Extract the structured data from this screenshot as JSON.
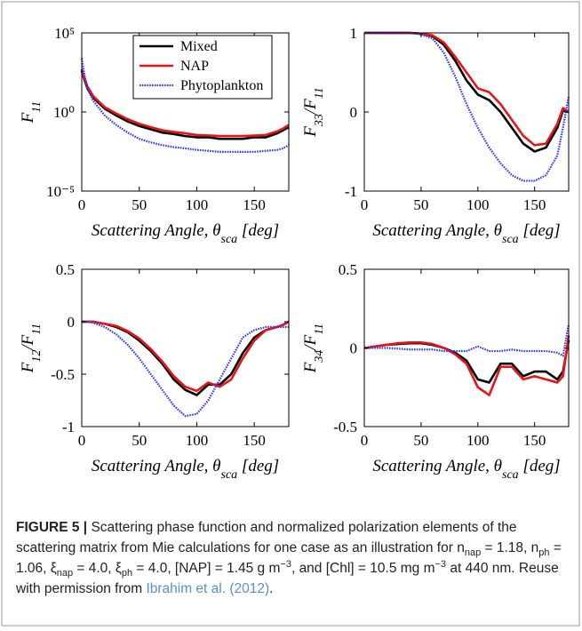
{
  "chart_data": [
    {
      "type": "line",
      "log_y": true,
      "y_label": [
        "F",
        "11"
      ],
      "x_label": [
        "Scattering Angle, θ",
        "sca",
        " [deg]"
      ],
      "x": [
        0,
        2,
        5,
        10,
        20,
        30,
        40,
        50,
        60,
        70,
        80,
        90,
        100,
        110,
        120,
        130,
        140,
        150,
        160,
        170,
        175,
        180
      ],
      "xlim": [
        0,
        180
      ],
      "xticks": [
        0,
        50,
        100,
        150
      ],
      "ylim": [
        1e-05,
        100000
      ],
      "yticks": [
        {
          "value": 1e-05,
          "label": "10⁻⁵"
        },
        {
          "value": 1,
          "label": "10⁰"
        },
        {
          "value": 100000,
          "label": "10⁵"
        }
      ],
      "legend": "upper right",
      "series": [
        {
          "name": "Mixed",
          "color": "#000000",
          "style": "solid",
          "values": [
            400,
            130,
            30,
            8,
            1.6,
            0.6,
            0.25,
            0.13,
            0.08,
            0.05,
            0.04,
            0.03,
            0.025,
            0.025,
            0.02,
            0.02,
            0.02,
            0.025,
            0.025,
            0.045,
            0.07,
            0.11
          ]
        },
        {
          "name": "NAP",
          "color": "#e8141b",
          "style": "solid",
          "values": [
            500,
            160,
            40,
            10,
            2,
            0.8,
            0.35,
            0.18,
            0.11,
            0.07,
            0.055,
            0.045,
            0.035,
            0.033,
            0.03,
            0.03,
            0.03,
            0.032,
            0.035,
            0.06,
            0.09,
            0.15
          ]
        },
        {
          "name": "Phytoplankton",
          "color": "#2b3cff",
          "style": "dotted",
          "values": [
            2500,
            300,
            30,
            5,
            0.6,
            0.15,
            0.05,
            0.02,
            0.012,
            0.008,
            0.006,
            0.005,
            0.004,
            0.0035,
            0.003,
            0.003,
            0.003,
            0.003,
            0.0035,
            0.004,
            0.005,
            0.008
          ]
        }
      ]
    },
    {
      "type": "line",
      "y_label": [
        "F",
        "33",
        "/F",
        "11"
      ],
      "x_label": [
        "Scattering Angle, θ",
        "sca",
        " [deg]"
      ],
      "x": [
        0,
        2,
        5,
        10,
        20,
        30,
        40,
        50,
        60,
        70,
        80,
        90,
        100,
        110,
        120,
        130,
        140,
        150,
        160,
        170,
        175,
        180
      ],
      "xlim": [
        0,
        180
      ],
      "xticks": [
        0,
        50,
        100,
        150
      ],
      "ylim": [
        -1,
        1
      ],
      "yticks": [
        -1,
        0,
        1
      ],
      "series": [
        {
          "color": "#000000",
          "style": "solid",
          "values": [
            1,
            1,
            1,
            1,
            1,
            1,
            1,
            0.99,
            0.96,
            0.85,
            0.65,
            0.4,
            0.22,
            0.15,
            0,
            -0.2,
            -0.4,
            -0.5,
            -0.45,
            -0.2,
            0.02,
            0
          ]
        },
        {
          "color": "#e8141b",
          "style": "solid",
          "values": [
            1,
            1,
            1,
            1,
            1,
            1,
            1,
            0.99,
            0.97,
            0.88,
            0.7,
            0.5,
            0.3,
            0.25,
            0.1,
            -0.1,
            -0.3,
            -0.42,
            -0.4,
            -0.15,
            0.05,
            0
          ]
        },
        {
          "color": "#2b3cff",
          "style": "dotted",
          "values": [
            1,
            1,
            1,
            1,
            1,
            1,
            1,
            0.98,
            0.93,
            0.75,
            0.45,
            0.1,
            -0.2,
            -0.45,
            -0.65,
            -0.8,
            -0.87,
            -0.87,
            -0.8,
            -0.55,
            -0.2,
            0.2
          ]
        }
      ]
    },
    {
      "type": "line",
      "y_label": [
        "F",
        "12",
        "/F",
        "11"
      ],
      "x_label": [
        "Scattering Angle, θ",
        "sca",
        " [deg]"
      ],
      "x": [
        0,
        2,
        5,
        10,
        20,
        30,
        40,
        50,
        60,
        70,
        80,
        90,
        100,
        110,
        120,
        130,
        140,
        150,
        160,
        170,
        175,
        180
      ],
      "xlim": [
        0,
        180
      ],
      "xticks": [
        0,
        50,
        100,
        150
      ],
      "ylim": [
        -1,
        0.5
      ],
      "yticks": [
        -1,
        -0.5,
        0,
        0.5
      ],
      "series": [
        {
          "color": "#000000",
          "style": "solid",
          "values": [
            0,
            0,
            0,
            0,
            -0.02,
            -0.05,
            -0.1,
            -0.18,
            -0.28,
            -0.4,
            -0.55,
            -0.65,
            -0.7,
            -0.6,
            -0.6,
            -0.5,
            -0.3,
            -0.15,
            -0.08,
            -0.05,
            -0.03,
            0
          ]
        },
        {
          "color": "#e8141b",
          "style": "solid",
          "values": [
            0,
            0,
            0,
            0,
            -0.02,
            -0.04,
            -0.09,
            -0.16,
            -0.26,
            -0.38,
            -0.52,
            -0.62,
            -0.66,
            -0.58,
            -0.62,
            -0.55,
            -0.35,
            -0.18,
            -0.08,
            -0.05,
            -0.03,
            0
          ]
        },
        {
          "color": "#2b3cff",
          "style": "dotted",
          "values": [
            0,
            0,
            0,
            -0.01,
            -0.05,
            -0.12,
            -0.22,
            -0.35,
            -0.5,
            -0.65,
            -0.8,
            -0.9,
            -0.88,
            -0.75,
            -0.55,
            -0.35,
            -0.15,
            -0.08,
            -0.05,
            -0.05,
            -0.05,
            -0.05
          ]
        }
      ]
    },
    {
      "type": "line",
      "y_label": [
        "F",
        "34",
        "/F",
        "11"
      ],
      "x_label": [
        "Scattering Angle, θ",
        "sca",
        " [deg]"
      ],
      "x": [
        0,
        2,
        5,
        10,
        20,
        30,
        40,
        50,
        60,
        70,
        80,
        90,
        100,
        110,
        120,
        130,
        140,
        150,
        160,
        170,
        175,
        180
      ],
      "xlim": [
        0,
        180
      ],
      "xticks": [
        0,
        50,
        100,
        150
      ],
      "ylim": [
        -0.5,
        0.5
      ],
      "yticks": [
        -0.5,
        0,
        0.5
      ],
      "series": [
        {
          "color": "#000000",
          "style": "solid",
          "values": [
            0,
            0,
            0.005,
            0.01,
            0.02,
            0.025,
            0.03,
            0.03,
            0.02,
            0,
            -0.03,
            -0.08,
            -0.2,
            -0.22,
            -0.1,
            -0.1,
            -0.18,
            -0.15,
            -0.15,
            -0.2,
            -0.15,
            0.05
          ]
        },
        {
          "color": "#e8141b",
          "style": "solid",
          "values": [
            0,
            0,
            0.005,
            0.01,
            0.02,
            0.03,
            0.035,
            0.035,
            0.025,
            0,
            -0.04,
            -0.1,
            -0.25,
            -0.3,
            -0.12,
            -0.12,
            -0.2,
            -0.18,
            -0.2,
            -0.22,
            -0.18,
            0.08
          ]
        },
        {
          "color": "#2b3cff",
          "style": "dotted",
          "values": [
            0,
            0,
            0,
            0,
            0,
            -0.005,
            -0.01,
            -0.01,
            -0.01,
            -0.02,
            -0.02,
            -0.02,
            0.01,
            -0.02,
            -0.02,
            -0.01,
            -0.02,
            -0.02,
            -0.02,
            -0.03,
            -0.05,
            0.15
          ]
        }
      ]
    }
  ],
  "caption": {
    "label": "FIGURE 5 |",
    "segments": [
      {
        "text": " Scattering phase function and normalized polarization elements of the scattering matrix from Mie calculations for one case as an illustration for n"
      },
      {
        "text": "nap",
        "style": "sub"
      },
      {
        "text": " = 1.18, n"
      },
      {
        "text": "ph",
        "style": "sub"
      },
      {
        "text": " = 1.06, ξ"
      },
      {
        "text": "nap",
        "style": "sub"
      },
      {
        "text": " = 4.0, ξ"
      },
      {
        "text": "ph",
        "style": "sub"
      },
      {
        "text": " = 4.0, [NAP] = 1.45 g m"
      },
      {
        "text": "−3",
        "style": "sup"
      },
      {
        "text": ", and [Chl] = 10.5 mg m"
      },
      {
        "text": "−3",
        "style": "sup"
      },
      {
        "text": " at 440 nm. Reuse with permission from "
      },
      {
        "text": "Ibrahim et al. (2012)",
        "style": "link"
      },
      {
        "text": "."
      }
    ]
  }
}
